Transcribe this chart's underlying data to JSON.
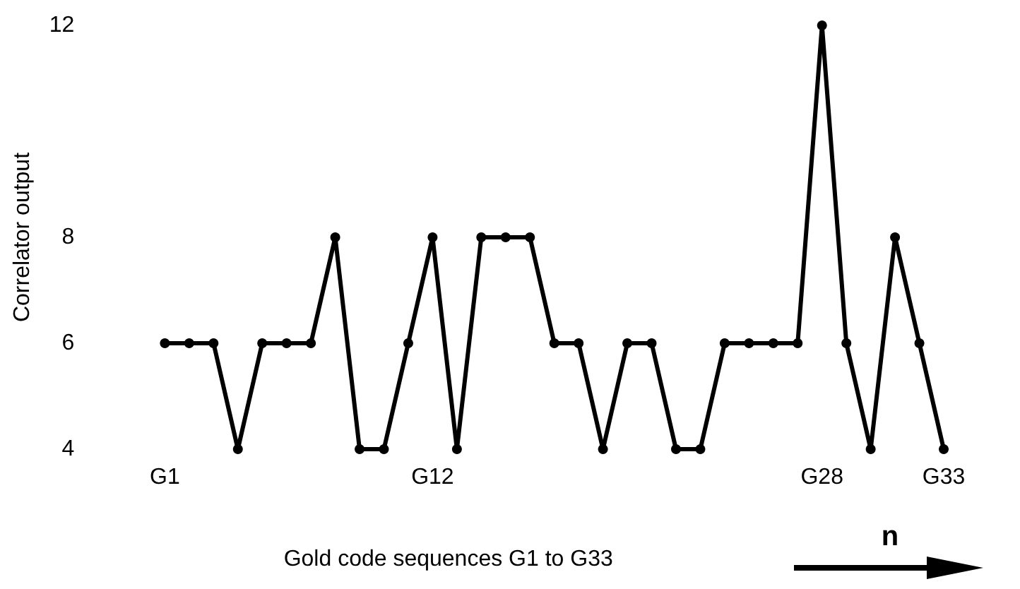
{
  "chart_data": {
    "type": "line",
    "xlabel": "Gold code sequences G1 to G33",
    "ylabel": "Correlator output",
    "categories": [
      "G1",
      null,
      null,
      null,
      null,
      null,
      null,
      null,
      null,
      null,
      null,
      "G12",
      null,
      null,
      null,
      null,
      null,
      null,
      null,
      null,
      null,
      null,
      null,
      null,
      null,
      null,
      null,
      "G28",
      null,
      null,
      null,
      null,
      "G33"
    ],
    "series": [
      {
        "color": "#000000",
        "values": [
          6,
          6,
          6,
          4,
          6,
          6,
          6,
          8,
          4,
          4,
          6,
          8,
          4,
          8,
          8,
          8,
          6,
          6,
          4,
          6,
          6,
          4,
          4,
          6,
          6,
          6,
          6,
          12,
          6,
          4,
          8,
          6,
          4
        ]
      }
    ],
    "ylim": [
      4,
      12
    ],
    "yticks": [
      4,
      6,
      8,
      12
    ],
    "grid": false,
    "marker": "circle",
    "line_style": "solid",
    "annotations": [
      "n"
    ]
  }
}
